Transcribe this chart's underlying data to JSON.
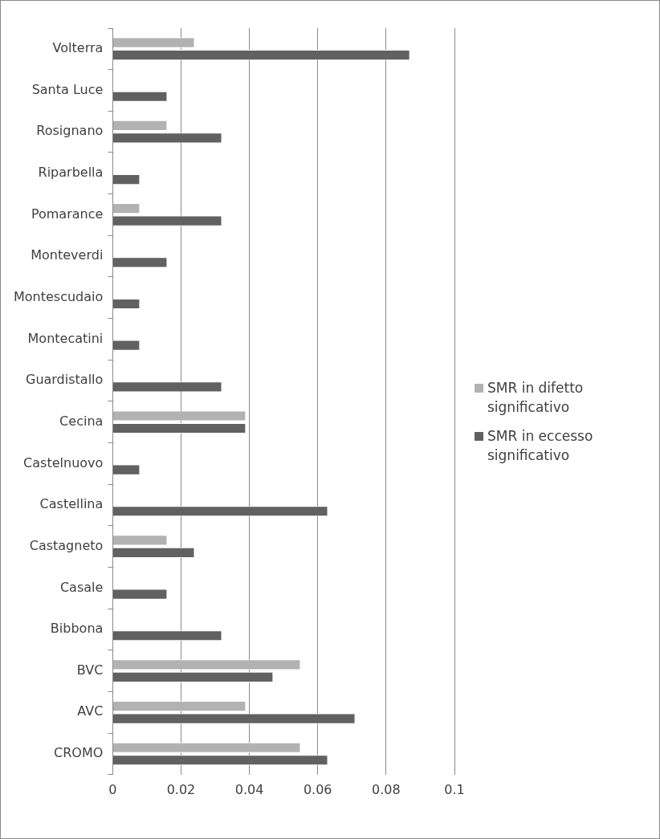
{
  "chart_data": {
    "type": "bar",
    "orientation": "horizontal",
    "categories": [
      "Volterra",
      "Santa Luce",
      "Rosignano",
      "Riparbella",
      "Pomarance",
      "Monteverdi",
      "Montescudaio",
      "Montecatini",
      "Guardistallo",
      "Cecina",
      "Castelnuovo",
      "Castellina",
      "Castagneto",
      "Casale",
      "Bibbona",
      "BVC",
      "AVC",
      "CROMO"
    ],
    "series": [
      {
        "name": "SMR in difetto significativo",
        "color": "#b2b2b2",
        "values": [
          0.024,
          null,
          0.016,
          null,
          0.008,
          null,
          null,
          null,
          null,
          0.039,
          null,
          null,
          0.016,
          null,
          null,
          0.055,
          0.039,
          0.055
        ]
      },
      {
        "name": "SMR in eccesso significativo",
        "color": "#616161",
        "values": [
          0.087,
          0.016,
          0.032,
          0.008,
          0.032,
          0.016,
          0.008,
          0.008,
          0.032,
          0.039,
          0.008,
          0.063,
          0.024,
          0.016,
          0.032,
          0.047,
          0.071,
          0.063
        ]
      }
    ],
    "xlim": [
      0,
      0.1
    ],
    "xticks": [
      0,
      0.02,
      0.04,
      0.06,
      0.08,
      0.1
    ],
    "grid": "x",
    "legend": "right"
  }
}
